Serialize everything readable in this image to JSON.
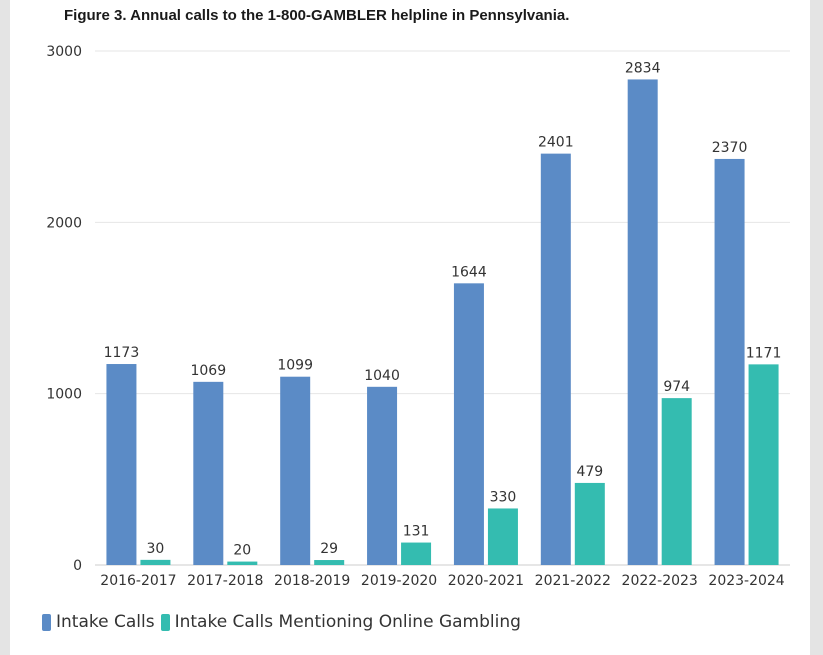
{
  "chart_data": {
    "type": "bar",
    "title": "Figure 3. Annual calls to the 1-800-GAMBLER helpline in Pennsylvania.",
    "categories": [
      "2016-2017",
      "2017-2018",
      "2018-2019",
      "2019-2020",
      "2020-2021",
      "2021-2022",
      "2022-2023",
      "2023-2024"
    ],
    "series": [
      {
        "name": "Intake Calls",
        "color": "#5b8bc6",
        "values": [
          1173,
          1069,
          1099,
          1040,
          1644,
          2401,
          2834,
          2370
        ]
      },
      {
        "name": "Intake Calls Mentioning Online Gambling",
        "color": "#34bcb0",
        "values": [
          30,
          20,
          29,
          131,
          330,
          479,
          974,
          1171
        ]
      }
    ],
    "ylim": [
      0,
      3000
    ],
    "yticks": [
      0,
      1000,
      2000,
      3000
    ],
    "grid": true,
    "legend": "bottom-left",
    "data_labels": true
  }
}
